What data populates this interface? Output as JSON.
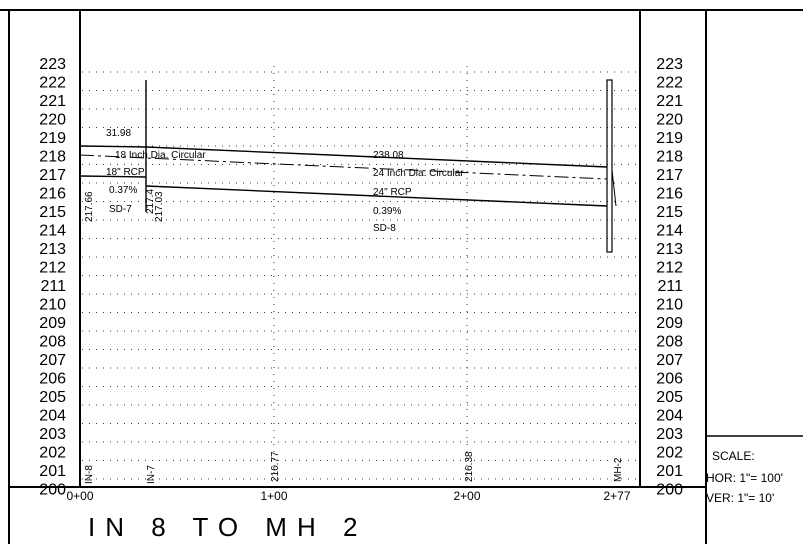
{
  "profile": {
    "elevations": [
      "223",
      "222",
      "221",
      "220",
      "219",
      "218",
      "217",
      "216",
      "215",
      "214",
      "213",
      "212",
      "211",
      "210",
      "209",
      "208",
      "207",
      "206",
      "205",
      "204",
      "203",
      "202",
      "201",
      "200"
    ],
    "stations": [
      "0+00",
      "1+00",
      "2+00",
      "2+77"
    ],
    "structures": [
      "IN-8",
      "IN-7",
      "MH-2"
    ],
    "ground_labels": [
      "216.77",
      "216.38"
    ],
    "inverts": [
      "217.66",
      "217.4",
      "217.03"
    ],
    "pipe_sd7": {
      "length": "31.98",
      "description": "18 Inch Dia. Circular",
      "material": "18\" RCP",
      "slope": "0.37%",
      "name": "SD-7"
    },
    "pipe_sd8": {
      "length": "238.08",
      "description": "24 Inch Dia. Circular",
      "material": "24\" RCP",
      "slope": "0.39%",
      "name": "SD-8"
    },
    "title": "IN 8 TO MH 2"
  },
  "scale": {
    "heading": "SCALE:",
    "horizontal": "HOR: 1\"= 100'",
    "vertical": "VER: 1\"= 10'"
  }
}
